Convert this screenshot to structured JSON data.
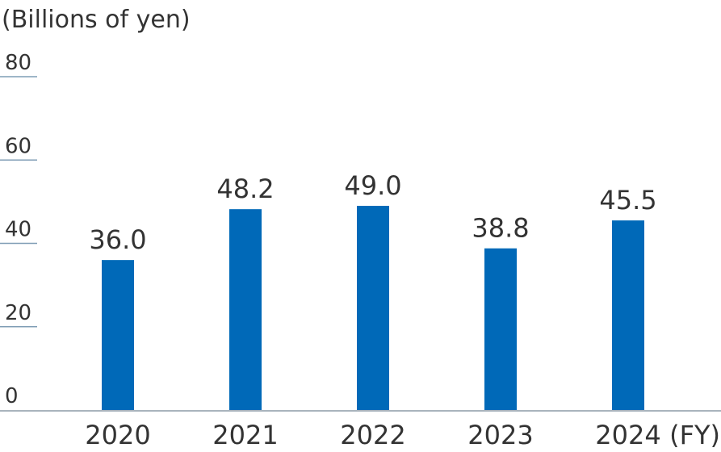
{
  "chart_data": {
    "type": "bar",
    "ylabel": "(Billions of yen)",
    "xunit": "(FY)",
    "categories": [
      "2020",
      "2021",
      "2022",
      "2023",
      "2024"
    ],
    "values": [
      36.0,
      48.2,
      49.0,
      38.8,
      45.5
    ],
    "value_labels": [
      "36.0",
      "48.2",
      "49.0",
      "38.8",
      "45.5"
    ],
    "ylim": [
      0,
      80
    ],
    "yticks": [
      0,
      20,
      40,
      60,
      80
    ],
    "ytick_labels": [
      "0",
      "20",
      "40",
      "60",
      "80"
    ],
    "grid": false,
    "legend": "none",
    "colors": {
      "bar": "#0069b8",
      "tick_line": "#7f9db5",
      "baseline": "#a9b4bd",
      "text": "#333333"
    }
  }
}
